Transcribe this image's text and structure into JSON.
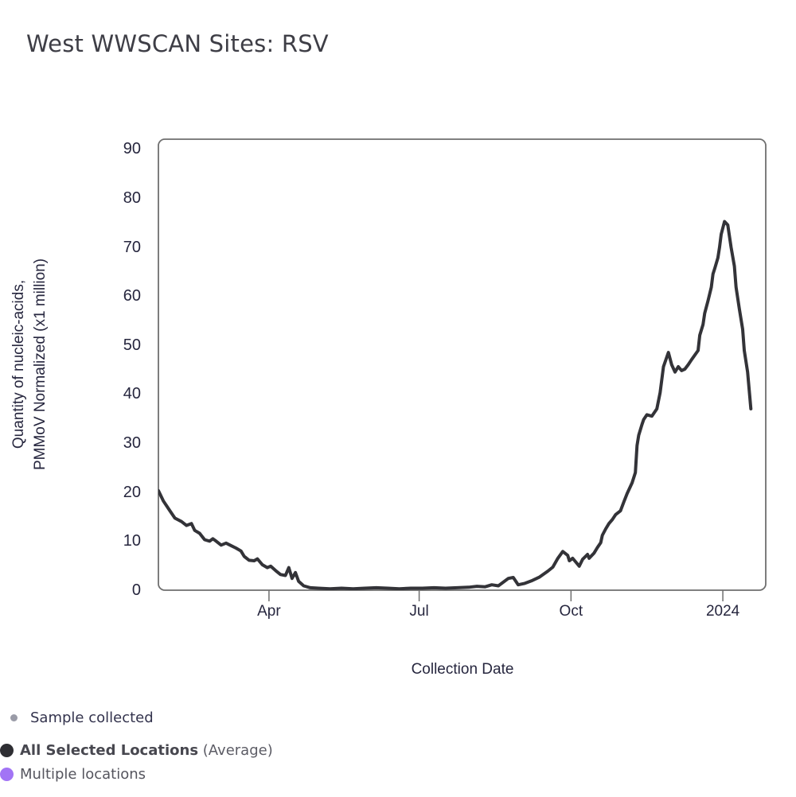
{
  "title": "West WWSCAN Sites: RSV",
  "labels": {
    "x_axis_title": "Collection Date",
    "y_axis_title": "Quantity of nucleic-acids,\nPMMoV Normalized (x1 million)"
  },
  "legend": {
    "sample": {
      "label": "Sample collected",
      "dot_color": "#9a9ba7"
    },
    "average": {
      "label_bold": "All Selected Locations",
      "label_suffix": " (Average)",
      "dot_color": "#2e2e33"
    },
    "multiple": {
      "label": "Multiple locations",
      "dot_color": "#a274f5"
    }
  },
  "chart_data": {
    "type": "line",
    "title": "West WWSCAN Sites: RSV",
    "xlabel": "Collection Date",
    "ylabel": "Quantity of nucleic-acids,\nPMMoV Normalized (x1 million)",
    "grid": false,
    "legend_position": "bottom-left",
    "line_color": "#333338",
    "axis_color": "#6f6f6f",
    "x_domain": [
      "2023-01-24",
      "2024-01-27"
    ],
    "ylim": [
      0,
      92
    ],
    "y_ticks": [
      0,
      10,
      20,
      30,
      40,
      50,
      60,
      70,
      80,
      90
    ],
    "x_ticks": [
      {
        "date": "2023-04-01",
        "label": "Apr"
      },
      {
        "date": "2023-07-01",
        "label": "Jul"
      },
      {
        "date": "2023-10-01",
        "label": "Oct"
      },
      {
        "date": "2024-01-01",
        "label": "2024"
      }
    ],
    "series": [
      {
        "name": "All Selected Locations (Average)",
        "color": "#333338",
        "points": [
          [
            "2023-01-24",
            20.3
          ],
          [
            "2023-01-27",
            18.2
          ],
          [
            "2023-01-31",
            16.2
          ],
          [
            "2023-02-03",
            14.7
          ],
          [
            "2023-02-07",
            14.0
          ],
          [
            "2023-02-10",
            13.2
          ],
          [
            "2023-02-13",
            13.6
          ],
          [
            "2023-02-15",
            12.2
          ],
          [
            "2023-02-18",
            11.6
          ],
          [
            "2023-02-21",
            10.3
          ],
          [
            "2023-02-24",
            10.0
          ],
          [
            "2023-02-26",
            10.5
          ],
          [
            "2023-02-28",
            10.0
          ],
          [
            "2023-03-03",
            9.2
          ],
          [
            "2023-03-06",
            9.6
          ],
          [
            "2023-03-09",
            9.1
          ],
          [
            "2023-03-12",
            8.6
          ],
          [
            "2023-03-15",
            8.0
          ],
          [
            "2023-03-17",
            6.9
          ],
          [
            "2023-03-20",
            6.1
          ],
          [
            "2023-03-23",
            6.0
          ],
          [
            "2023-03-25",
            6.4
          ],
          [
            "2023-03-28",
            5.2
          ],
          [
            "2023-03-31",
            4.6
          ],
          [
            "2023-04-02",
            4.9
          ],
          [
            "2023-04-05",
            4.0
          ],
          [
            "2023-04-08",
            3.2
          ],
          [
            "2023-04-11",
            3.0
          ],
          [
            "2023-04-13",
            4.6
          ],
          [
            "2023-04-15",
            2.4
          ],
          [
            "2023-04-17",
            3.6
          ],
          [
            "2023-04-19",
            1.8
          ],
          [
            "2023-04-22",
            0.9
          ],
          [
            "2023-04-26",
            0.5
          ],
          [
            "2023-05-01",
            0.4
          ],
          [
            "2023-05-08",
            0.3
          ],
          [
            "2023-05-15",
            0.4
          ],
          [
            "2023-05-22",
            0.3
          ],
          [
            "2023-05-29",
            0.4
          ],
          [
            "2023-06-05",
            0.5
          ],
          [
            "2023-06-12",
            0.4
          ],
          [
            "2023-06-19",
            0.3
          ],
          [
            "2023-06-26",
            0.4
          ],
          [
            "2023-07-03",
            0.4
          ],
          [
            "2023-07-10",
            0.5
          ],
          [
            "2023-07-17",
            0.4
          ],
          [
            "2023-07-24",
            0.5
          ],
          [
            "2023-07-31",
            0.6
          ],
          [
            "2023-08-05",
            0.8
          ],
          [
            "2023-08-10",
            0.7
          ],
          [
            "2023-08-14",
            1.1
          ],
          [
            "2023-08-18",
            0.9
          ],
          [
            "2023-08-24",
            2.4
          ],
          [
            "2023-08-27",
            2.6
          ],
          [
            "2023-08-30",
            1.1
          ],
          [
            "2023-09-03",
            1.4
          ],
          [
            "2023-09-07",
            1.9
          ],
          [
            "2023-09-12",
            2.7
          ],
          [
            "2023-09-17",
            3.9
          ],
          [
            "2023-09-20",
            4.7
          ],
          [
            "2023-09-23",
            6.5
          ],
          [
            "2023-09-26",
            7.9
          ],
          [
            "2023-09-29",
            7.1
          ],
          [
            "2023-09-30",
            6.0
          ],
          [
            "2023-10-02",
            6.5
          ],
          [
            "2023-10-04",
            5.7
          ],
          [
            "2023-10-06",
            4.9
          ],
          [
            "2023-10-08",
            6.3
          ],
          [
            "2023-10-11",
            7.3
          ],
          [
            "2023-10-12",
            6.5
          ],
          [
            "2023-10-15",
            7.6
          ],
          [
            "2023-10-17",
            8.7
          ],
          [
            "2023-10-19",
            9.7
          ],
          [
            "2023-10-20",
            11.2
          ],
          [
            "2023-10-22",
            12.5
          ],
          [
            "2023-10-24",
            13.6
          ],
          [
            "2023-10-26",
            14.4
          ],
          [
            "2023-10-28",
            15.4
          ],
          [
            "2023-10-31",
            16.2
          ],
          [
            "2023-11-02",
            18.0
          ],
          [
            "2023-11-04",
            19.7
          ],
          [
            "2023-11-07",
            21.9
          ],
          [
            "2023-11-09",
            24.0
          ],
          [
            "2023-11-10",
            29.5
          ],
          [
            "2023-11-11",
            31.6
          ],
          [
            "2023-11-13",
            33.8
          ],
          [
            "2023-11-14",
            34.8
          ],
          [
            "2023-11-16",
            35.8
          ],
          [
            "2023-11-19",
            35.5
          ],
          [
            "2023-11-22",
            37.0
          ],
          [
            "2023-11-24",
            40.3
          ],
          [
            "2023-11-26",
            45.6
          ],
          [
            "2023-11-29",
            48.5
          ],
          [
            "2023-12-01",
            46.0
          ],
          [
            "2023-12-03",
            44.5
          ],
          [
            "2023-12-05",
            45.6
          ],
          [
            "2023-12-07",
            44.8
          ],
          [
            "2023-12-09",
            45.1
          ],
          [
            "2023-12-11",
            46.0
          ],
          [
            "2023-12-13",
            47.0
          ],
          [
            "2023-12-17",
            48.9
          ],
          [
            "2023-12-18",
            52.0
          ],
          [
            "2023-12-20",
            54.2
          ],
          [
            "2023-12-21",
            56.5
          ],
          [
            "2023-12-23",
            59.0
          ],
          [
            "2023-12-25",
            61.8
          ],
          [
            "2023-12-26",
            64.5
          ],
          [
            "2023-12-27",
            65.5
          ],
          [
            "2023-12-29",
            67.8
          ],
          [
            "2023-12-30",
            69.9
          ],
          [
            "2023-12-31",
            72.6
          ],
          [
            "2024-01-02",
            75.2
          ],
          [
            "2024-01-04",
            74.5
          ],
          [
            "2024-01-06",
            69.9
          ],
          [
            "2024-01-08",
            66.1
          ],
          [
            "2024-01-09",
            61.8
          ],
          [
            "2024-01-11",
            57.4
          ],
          [
            "2024-01-13",
            53.2
          ],
          [
            "2024-01-14",
            48.9
          ],
          [
            "2024-01-16",
            44.5
          ],
          [
            "2024-01-18",
            37.0
          ]
        ]
      }
    ]
  }
}
